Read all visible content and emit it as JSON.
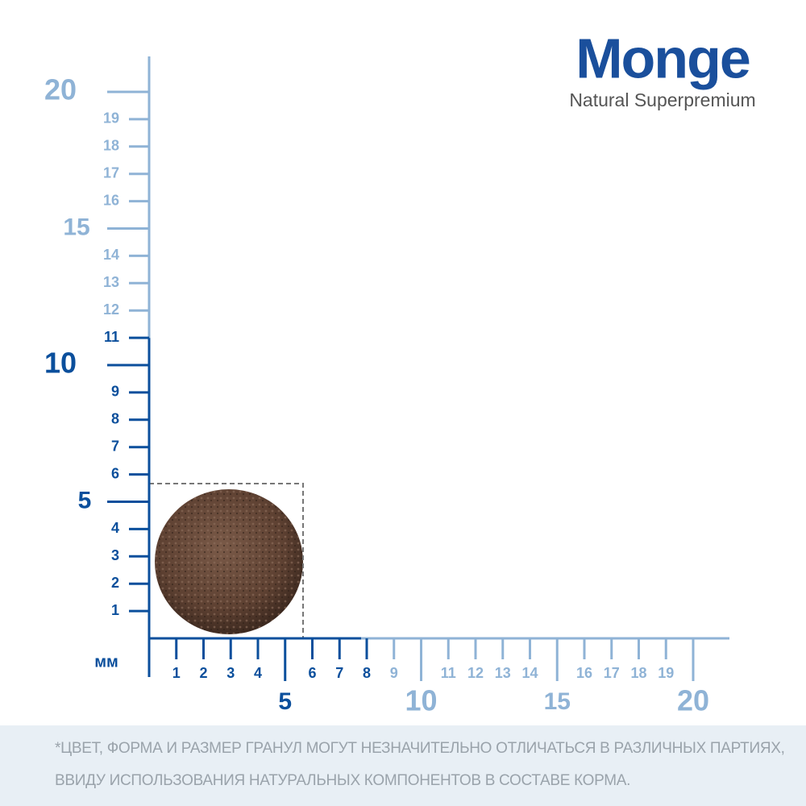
{
  "logo": {
    "brand": "Monge",
    "tagline": "Natural Superpremium"
  },
  "unit": "мм",
  "y_axis": {
    "minor_labels": [
      1,
      2,
      3,
      4,
      6,
      7,
      8,
      9,
      11,
      12,
      13,
      14,
      16,
      17,
      18,
      19
    ],
    "major_labels": [
      5,
      10,
      15,
      20
    ]
  },
  "x_axis": {
    "minor_labels": [
      1,
      2,
      3,
      4,
      6,
      7,
      8,
      9,
      11,
      12,
      13,
      14,
      16,
      17,
      18,
      19
    ],
    "major_labels": [
      5,
      10,
      15,
      20
    ]
  },
  "footnote": {
    "line1": "*ЦВЕТ, ФОРМА И РАЗМЕР ГРАНУЛ МОГУТ НЕЗНАЧИТЕЛЬНО ОТЛИЧАТЬСЯ В РАЗЛИЧНЫХ ПАРТИЯХ,",
    "line2": "ВВИДУ ИСПОЛЬЗОВАНИЯ НАТУРАЛЬНЫХ КОМПОНЕНТОВ В СОСТАВЕ КОРМА."
  }
}
